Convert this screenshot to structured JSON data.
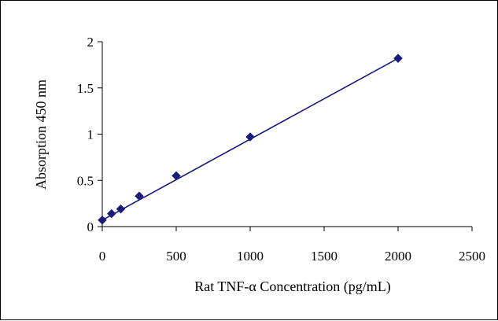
{
  "chart_data": {
    "type": "scatter",
    "title": "",
    "xlabel": "Rat TNF-α Concentration (pg/mL)",
    "ylabel": "Absorption 450 nm",
    "xlim": [
      0,
      2500
    ],
    "ylim": [
      0,
      2
    ],
    "x_ticks": [
      "0",
      "500",
      "1000",
      "1500",
      "2000",
      "2500"
    ],
    "y_ticks": [
      "0",
      "0.5",
      "1",
      "1.5",
      "2"
    ],
    "grid": false,
    "legend": "none",
    "series": [
      {
        "marker": "diamond",
        "line": "linear fit",
        "color": "#1a1a7e",
        "points": [
          {
            "x": 0,
            "y": 0.07
          },
          {
            "x": 62.5,
            "y": 0.14
          },
          {
            "x": 125,
            "y": 0.19
          },
          {
            "x": 250,
            "y": 0.33
          },
          {
            "x": 500,
            "y": 0.55
          },
          {
            "x": 1000,
            "y": 0.97
          },
          {
            "x": 2000,
            "y": 1.82
          }
        ],
        "fit": {
          "x": [
            0,
            2000
          ],
          "y": [
            0.07,
            1.82
          ]
        }
      }
    ]
  }
}
